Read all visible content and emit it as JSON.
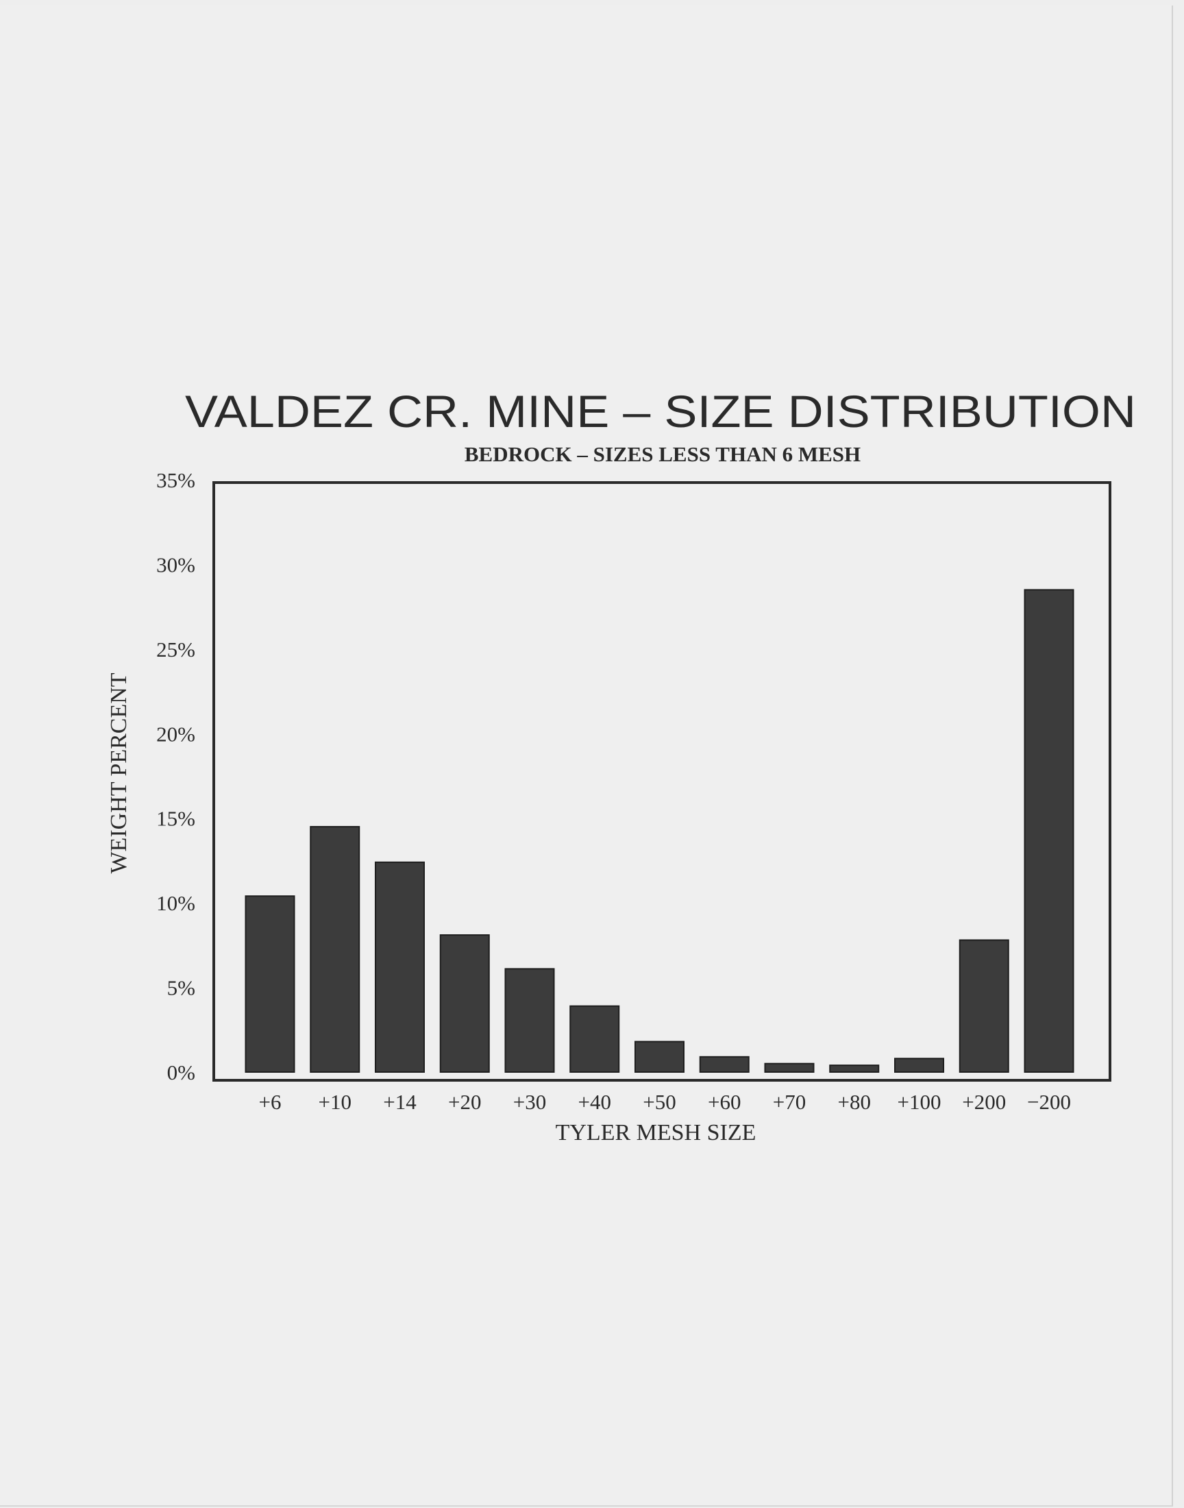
{
  "chart_data": {
    "type": "bar",
    "title": "VALDEZ CR. MINE – SIZE DISTRIBUTION",
    "subtitle": "BEDROCK – SIZES LESS THAN 6 MESH",
    "xlabel": "TYLER MESH SIZE",
    "ylabel": "WEIGHT PERCENT",
    "categories": [
      "+6",
      "+10",
      "+14",
      "+20",
      "+30",
      "+40",
      "+50",
      "+60",
      "+70",
      "+80",
      "+100",
      "+200",
      "−200"
    ],
    "values": [
      10.4,
      14.5,
      12.4,
      8.1,
      6.1,
      3.9,
      1.8,
      0.9,
      0.5,
      0.4,
      0.8,
      7.8,
      28.5
    ],
    "ylim": [
      0,
      35
    ],
    "yticks": [
      0,
      5,
      10,
      15,
      20,
      25,
      30,
      35
    ],
    "ytick_labels": [
      "0%",
      "5%",
      "10%",
      "15%",
      "20%",
      "25%",
      "30%",
      "35%"
    ],
    "grid": false,
    "legend": "none",
    "bar_color": "#3c3c3c"
  }
}
